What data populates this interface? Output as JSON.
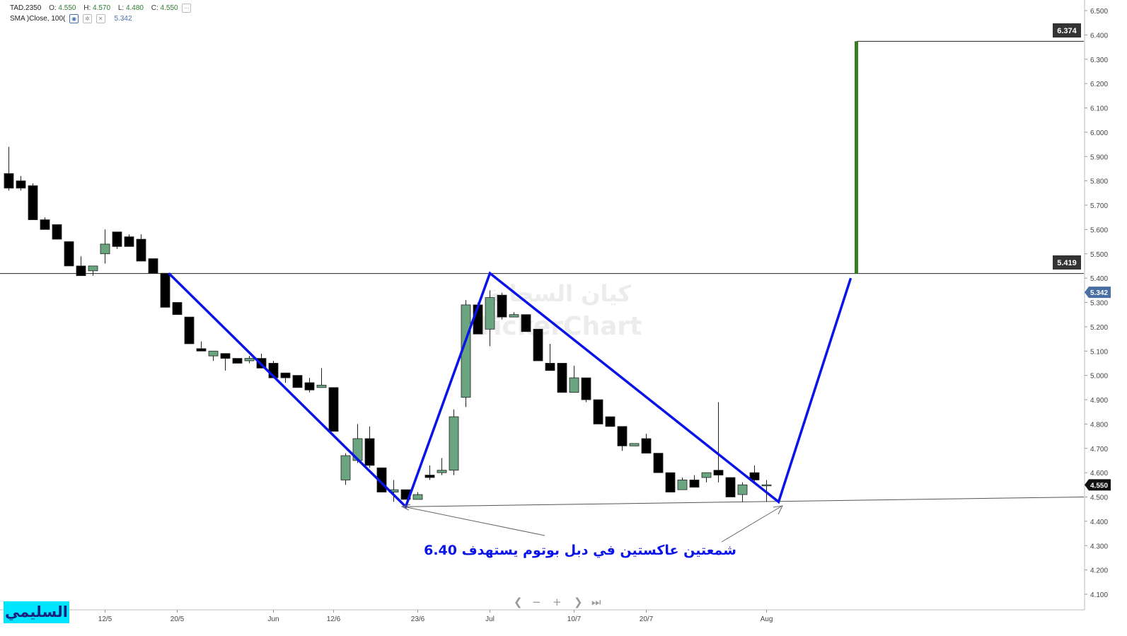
{
  "legend": {
    "symbol": "TAD.2350",
    "o_label": "O:",
    "o_value": "4.550",
    "h_label": "H:",
    "h_value": "4.570",
    "l_label": "L:",
    "l_value": "4.480",
    "c_label": "C:",
    "c_value": "4.550",
    "indicator": "SMA  )Close, 100(",
    "indicator_value": "5.342",
    "icons": [
      "eye-icon",
      "gear-icon",
      "close-icon"
    ]
  },
  "watermark": {
    "line1": "كيان السحابة",
    "line2": "TickerChart"
  },
  "signature": "السليمي",
  "annotation": "شمعتين عاكستين في دبل بوتوم يستهدف 6.40",
  "nav_controls": [
    "❮",
    "−",
    "+",
    "❯",
    "⏭"
  ],
  "colors": {
    "bull": "#6aa580",
    "bear": "#000000",
    "pattern": "#0a14e6",
    "target_bar": "#3a7d23",
    "price_tag": "#333333",
    "sma_tag": "#4a6fa5"
  },
  "chart_data": {
    "type": "candlestick",
    "ylim": [
      4.05,
      6.5
    ],
    "y_ticks": [
      "6.500",
      "6.400",
      "6.300",
      "6.200",
      "6.100",
      "6.000",
      "5.900",
      "5.800",
      "5.700",
      "5.600",
      "5.500",
      "5.400",
      "5.300",
      "5.200",
      "5.100",
      "5.000",
      "4.900",
      "4.800",
      "4.700",
      "4.600",
      "4.500",
      "4.400",
      "4.300",
      "4.200",
      "4.100"
    ],
    "x_labels": [
      {
        "label": "12/5",
        "index": 8
      },
      {
        "label": "20/5",
        "index": 14
      },
      {
        "label": "Jun",
        "index": 22
      },
      {
        "label": "12/6",
        "index": 27
      },
      {
        "label": "23/6",
        "index": 34
      },
      {
        "label": "Jul",
        "index": 40
      },
      {
        "label": "10/7",
        "index": 47
      },
      {
        "label": "20/7",
        "index": 53
      },
      {
        "label": "Aug",
        "index": 63
      }
    ],
    "candles": [
      {
        "o": 5.83,
        "h": 5.94,
        "l": 5.76,
        "c": 5.77
      },
      {
        "o": 5.8,
        "h": 5.82,
        "l": 5.76,
        "c": 5.77
      },
      {
        "o": 5.78,
        "h": 5.79,
        "l": 5.64,
        "c": 5.64
      },
      {
        "o": 5.64,
        "h": 5.65,
        "l": 5.6,
        "c": 5.6
      },
      {
        "o": 5.62,
        "h": 5.62,
        "l": 5.56,
        "c": 5.56
      },
      {
        "o": 5.55,
        "h": 5.55,
        "l": 5.45,
        "c": 5.45
      },
      {
        "o": 5.45,
        "h": 5.49,
        "l": 5.41,
        "c": 5.41
      },
      {
        "o": 5.43,
        "h": 5.45,
        "l": 5.41,
        "c": 5.45
      },
      {
        "o": 5.5,
        "h": 5.6,
        "l": 5.46,
        "c": 5.54
      },
      {
        "o": 5.59,
        "h": 5.59,
        "l": 5.52,
        "c": 5.53
      },
      {
        "o": 5.57,
        "h": 5.58,
        "l": 5.53,
        "c": 5.53
      },
      {
        "o": 5.56,
        "h": 5.58,
        "l": 5.47,
        "c": 5.47
      },
      {
        "o": 5.48,
        "h": 5.48,
        "l": 5.42,
        "c": 5.42
      },
      {
        "o": 5.42,
        "h": 5.42,
        "l": 5.28,
        "c": 5.28
      },
      {
        "o": 5.3,
        "h": 5.3,
        "l": 5.25,
        "c": 5.25
      },
      {
        "o": 5.24,
        "h": 5.24,
        "l": 5.13,
        "c": 5.13
      },
      {
        "o": 5.11,
        "h": 5.14,
        "l": 5.1,
        "c": 5.1
      },
      {
        "o": 5.08,
        "h": 5.1,
        "l": 5.06,
        "c": 5.1
      },
      {
        "o": 5.09,
        "h": 5.09,
        "l": 5.02,
        "c": 5.07
      },
      {
        "o": 5.07,
        "h": 5.07,
        "l": 5.05,
        "c": 5.05
      },
      {
        "o": 5.06,
        "h": 5.08,
        "l": 5.05,
        "c": 5.07
      },
      {
        "o": 5.07,
        "h": 5.09,
        "l": 5.03,
        "c": 5.03
      },
      {
        "o": 5.05,
        "h": 5.06,
        "l": 4.99,
        "c": 4.99
      },
      {
        "o": 5.01,
        "h": 5.01,
        "l": 4.97,
        "c": 4.99
      },
      {
        "o": 5.0,
        "h": 5.0,
        "l": 4.95,
        "c": 4.95
      },
      {
        "o": 4.97,
        "h": 4.99,
        "l": 4.93,
        "c": 4.94
      },
      {
        "o": 4.95,
        "h": 5.03,
        "l": 4.95,
        "c": 4.96
      },
      {
        "o": 4.95,
        "h": 4.95,
        "l": 4.77,
        "c": 4.77
      },
      {
        "o": 4.57,
        "h": 4.68,
        "l": 4.55,
        "c": 4.67
      },
      {
        "o": 4.65,
        "h": 4.8,
        "l": 4.64,
        "c": 4.74
      },
      {
        "o": 4.74,
        "h": 4.79,
        "l": 4.62,
        "c": 4.63
      },
      {
        "o": 4.62,
        "h": 4.62,
        "l": 4.52,
        "c": 4.52
      },
      {
        "o": 4.52,
        "h": 4.57,
        "l": 4.48,
        "c": 4.53
      },
      {
        "o": 4.53,
        "h": 4.53,
        "l": 4.49,
        "c": 4.49
      },
      {
        "o": 4.49,
        "h": 4.52,
        "l": 4.49,
        "c": 4.51
      },
      {
        "o": 4.59,
        "h": 4.63,
        "l": 4.57,
        "c": 4.58
      },
      {
        "o": 4.6,
        "h": 4.66,
        "l": 4.59,
        "c": 4.61
      },
      {
        "o": 4.61,
        "h": 4.86,
        "l": 4.59,
        "c": 4.83
      },
      {
        "o": 4.91,
        "h": 5.31,
        "l": 4.87,
        "c": 5.29
      },
      {
        "o": 5.29,
        "h": 5.3,
        "l": 5.17,
        "c": 5.17
      },
      {
        "o": 5.19,
        "h": 5.35,
        "l": 5.12,
        "c": 5.32
      },
      {
        "o": 5.33,
        "h": 5.34,
        "l": 5.23,
        "c": 5.24
      },
      {
        "o": 5.24,
        "h": 5.26,
        "l": 5.24,
        "c": 5.25
      },
      {
        "o": 5.25,
        "h": 5.25,
        "l": 5.18,
        "c": 5.18
      },
      {
        "o": 5.19,
        "h": 5.19,
        "l": 5.06,
        "c": 5.06
      },
      {
        "o": 5.05,
        "h": 5.13,
        "l": 5.02,
        "c": 5.02
      },
      {
        "o": 5.05,
        "h": 5.05,
        "l": 4.93,
        "c": 4.93
      },
      {
        "o": 4.93,
        "h": 5.04,
        "l": 4.93,
        "c": 4.99
      },
      {
        "o": 4.99,
        "h": 4.99,
        "l": 4.89,
        "c": 4.9
      },
      {
        "o": 4.9,
        "h": 4.9,
        "l": 4.8,
        "c": 4.8
      },
      {
        "o": 4.83,
        "h": 4.83,
        "l": 4.79,
        "c": 4.79
      },
      {
        "o": 4.79,
        "h": 4.79,
        "l": 4.69,
        "c": 4.71
      },
      {
        "o": 4.71,
        "h": 4.72,
        "l": 4.71,
        "c": 4.72
      },
      {
        "o": 4.74,
        "h": 4.76,
        "l": 4.68,
        "c": 4.68
      },
      {
        "o": 4.68,
        "h": 4.68,
        "l": 4.6,
        "c": 4.6
      },
      {
        "o": 4.6,
        "h": 4.6,
        "l": 4.52,
        "c": 4.52
      },
      {
        "o": 4.53,
        "h": 4.58,
        "l": 4.53,
        "c": 4.57
      },
      {
        "o": 4.57,
        "h": 4.59,
        "l": 4.54,
        "c": 4.54
      },
      {
        "o": 4.58,
        "h": 4.6,
        "l": 4.56,
        "c": 4.6
      },
      {
        "o": 4.61,
        "h": 4.89,
        "l": 4.56,
        "c": 4.59
      },
      {
        "o": 4.58,
        "h": 4.58,
        "l": 4.5,
        "c": 4.5
      },
      {
        "o": 4.51,
        "h": 4.56,
        "l": 4.48,
        "c": 4.55
      },
      {
        "o": 4.6,
        "h": 4.63,
        "l": 4.56,
        "c": 4.57
      },
      {
        "o": 4.55,
        "h": 4.57,
        "l": 4.48,
        "c": 4.55
      }
    ],
    "lines": {
      "resistance": 5.419,
      "support_start": 4.46,
      "support_end": 4.5,
      "target_top": 6.374,
      "target_bottom": 5.419
    },
    "pattern_points": [
      {
        "index": 13.3,
        "y": 5.42
      },
      {
        "index": 33,
        "y": 4.46
      },
      {
        "index": 40,
        "y": 5.42
      },
      {
        "index": 64,
        "y": 4.48
      },
      {
        "index": 70,
        "y": 5.4
      }
    ],
    "price_tags": {
      "target": "6.374",
      "resistance": "5.419",
      "sma": "5.342",
      "last": "4.550"
    }
  }
}
